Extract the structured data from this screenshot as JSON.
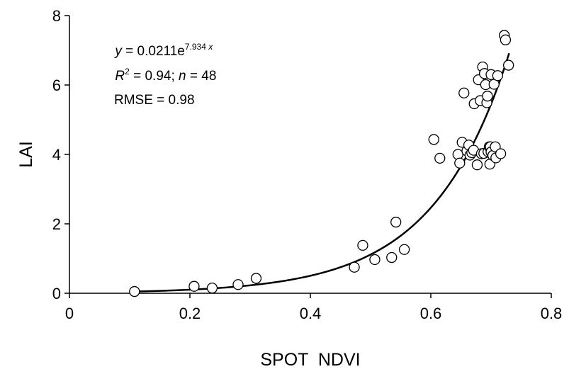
{
  "chart_data": {
    "type": "scatter",
    "xlabel": "SPOT  NDVI",
    "ylabel": "LAI",
    "xlim": [
      0,
      0.8
    ],
    "ylim": [
      0,
      8
    ],
    "x_ticks": [
      0,
      0.2,
      0.4,
      0.6,
      0.8
    ],
    "x_tick_labels": [
      "0",
      "0.2",
      "0.4",
      "0.6",
      "0.8"
    ],
    "y_ticks": [
      0,
      2,
      4,
      6,
      8
    ],
    "y_tick_labels": [
      "0",
      "2",
      "4",
      "6",
      "8"
    ],
    "grid": false,
    "points": [
      [
        0.108,
        0.05
      ],
      [
        0.207,
        0.2
      ],
      [
        0.237,
        0.15
      ],
      [
        0.28,
        0.25
      ],
      [
        0.31,
        0.43
      ],
      [
        0.473,
        0.75
      ],
      [
        0.487,
        1.38
      ],
      [
        0.507,
        0.97
      ],
      [
        0.535,
        1.03
      ],
      [
        0.542,
        2.05
      ],
      [
        0.556,
        1.26
      ],
      [
        0.605,
        4.43
      ],
      [
        0.615,
        3.89
      ],
      [
        0.645,
        4.0
      ],
      [
        0.648,
        3.75
      ],
      [
        0.652,
        4.35
      ],
      [
        0.655,
        5.77
      ],
      [
        0.66,
        4.1
      ],
      [
        0.663,
        4.27
      ],
      [
        0.665,
        3.98
      ],
      [
        0.668,
        4.05
      ],
      [
        0.671,
        4.12
      ],
      [
        0.672,
        5.46
      ],
      [
        0.677,
        3.7
      ],
      [
        0.679,
        6.15
      ],
      [
        0.682,
        5.55
      ],
      [
        0.684,
        4.02
      ],
      [
        0.686,
        6.52
      ],
      [
        0.688,
        4.03
      ],
      [
        0.689,
        6.33
      ],
      [
        0.691,
        6.01
      ],
      [
        0.693,
        5.49
      ],
      [
        0.694,
        5.68
      ],
      [
        0.695,
        4.08
      ],
      [
        0.697,
        4.22
      ],
      [
        0.698,
        3.72
      ],
      [
        0.699,
        4.22
      ],
      [
        0.7,
        4.07
      ],
      [
        0.7,
        6.3
      ],
      [
        0.703,
        3.97
      ],
      [
        0.705,
        6.02
      ],
      [
        0.707,
        4.22
      ],
      [
        0.708,
        3.9
      ],
      [
        0.711,
        6.27
      ],
      [
        0.716,
        4.02
      ],
      [
        0.722,
        7.43
      ],
      [
        0.724,
        7.3
      ],
      [
        0.729,
        6.57
      ]
    ],
    "fit": {
      "equation": "y = 0.0211e^(7.934x)",
      "a": 0.0211,
      "b": 7.934,
      "x_range": [
        0.108,
        0.73
      ]
    },
    "annotations": {
      "eq_y": "y",
      "eq_mid": " = 0.0211e",
      "eq_exp": "7.934 ",
      "eq_x": "x",
      "r2_R": "R",
      "r2_sup": "2",
      "r2_mid": " = 0.94; ",
      "r2_n": "n",
      "r2_end": " = 48",
      "rmse": "RMSE = 0.98"
    }
  }
}
